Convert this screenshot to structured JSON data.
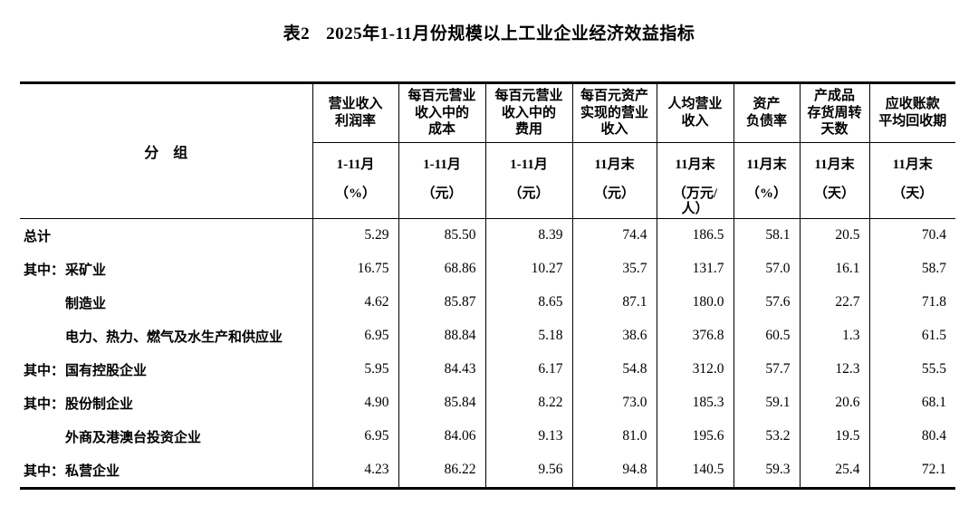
{
  "title": {
    "table_label": "表2",
    "text": "2025年1-11月份规模以上工业企业经济效益指标"
  },
  "table": {
    "group_header": "分　组",
    "columns": [
      {
        "name": "营业收入\n利润率",
        "period": "1-11月",
        "unit": "（%）"
      },
      {
        "name": "每百元营业\n收入中的\n成本",
        "period": "1-11月",
        "unit": "（元）"
      },
      {
        "name": "每百元营业\n收入中的\n费用",
        "period": "1-11月",
        "unit": "（元）"
      },
      {
        "name": "每百元资产\n实现的营业\n收入",
        "period": "11月末",
        "unit": "（元）"
      },
      {
        "name": "人均营业\n收入",
        "period": "11月末",
        "unit": "（万元/\n人）"
      },
      {
        "name": "资产\n负债率",
        "period": "11月末",
        "unit": "（%）"
      },
      {
        "name": "产成品\n存货周转\n天数",
        "period": "11月末",
        "unit": "（天）"
      },
      {
        "name": "应收账款\n平均回收期",
        "period": "11月末",
        "unit": "（天）"
      }
    ],
    "rows": [
      {
        "prefix": "",
        "indent": false,
        "name": "总计",
        "values": [
          "5.29",
          "85.50",
          "8.39",
          "74.4",
          "186.5",
          "58.1",
          "20.5",
          "70.4"
        ]
      },
      {
        "prefix": "其中：",
        "indent": true,
        "name": "采矿业",
        "values": [
          "16.75",
          "68.86",
          "10.27",
          "35.7",
          "131.7",
          "57.0",
          "16.1",
          "58.7"
        ]
      },
      {
        "prefix": "",
        "indent": true,
        "name": "制造业",
        "values": [
          "4.62",
          "85.87",
          "8.65",
          "87.1",
          "180.0",
          "57.6",
          "22.7",
          "71.8"
        ]
      },
      {
        "prefix": "",
        "indent": true,
        "name": "电力、热力、燃气及水生产和供应业",
        "values": [
          "6.95",
          "88.84",
          "5.18",
          "38.6",
          "376.8",
          "60.5",
          "1.3",
          "61.5"
        ]
      },
      {
        "prefix": "其中：",
        "indent": true,
        "name": "国有控股企业",
        "values": [
          "5.95",
          "84.43",
          "6.17",
          "54.8",
          "312.0",
          "57.7",
          "12.3",
          "55.5"
        ]
      },
      {
        "prefix": "其中：",
        "indent": true,
        "name": "股份制企业",
        "values": [
          "4.90",
          "85.84",
          "8.22",
          "73.0",
          "185.3",
          "59.1",
          "20.6",
          "68.1"
        ]
      },
      {
        "prefix": "",
        "indent": true,
        "name": "外商及港澳台投资企业",
        "values": [
          "6.95",
          "84.06",
          "9.13",
          "81.0",
          "195.6",
          "53.2",
          "19.5",
          "80.4"
        ]
      },
      {
        "prefix": "其中：",
        "indent": true,
        "name": "私营企业",
        "values": [
          "4.23",
          "86.22",
          "9.56",
          "94.8",
          "140.5",
          "59.3",
          "25.4",
          "72.1"
        ]
      }
    ]
  }
}
